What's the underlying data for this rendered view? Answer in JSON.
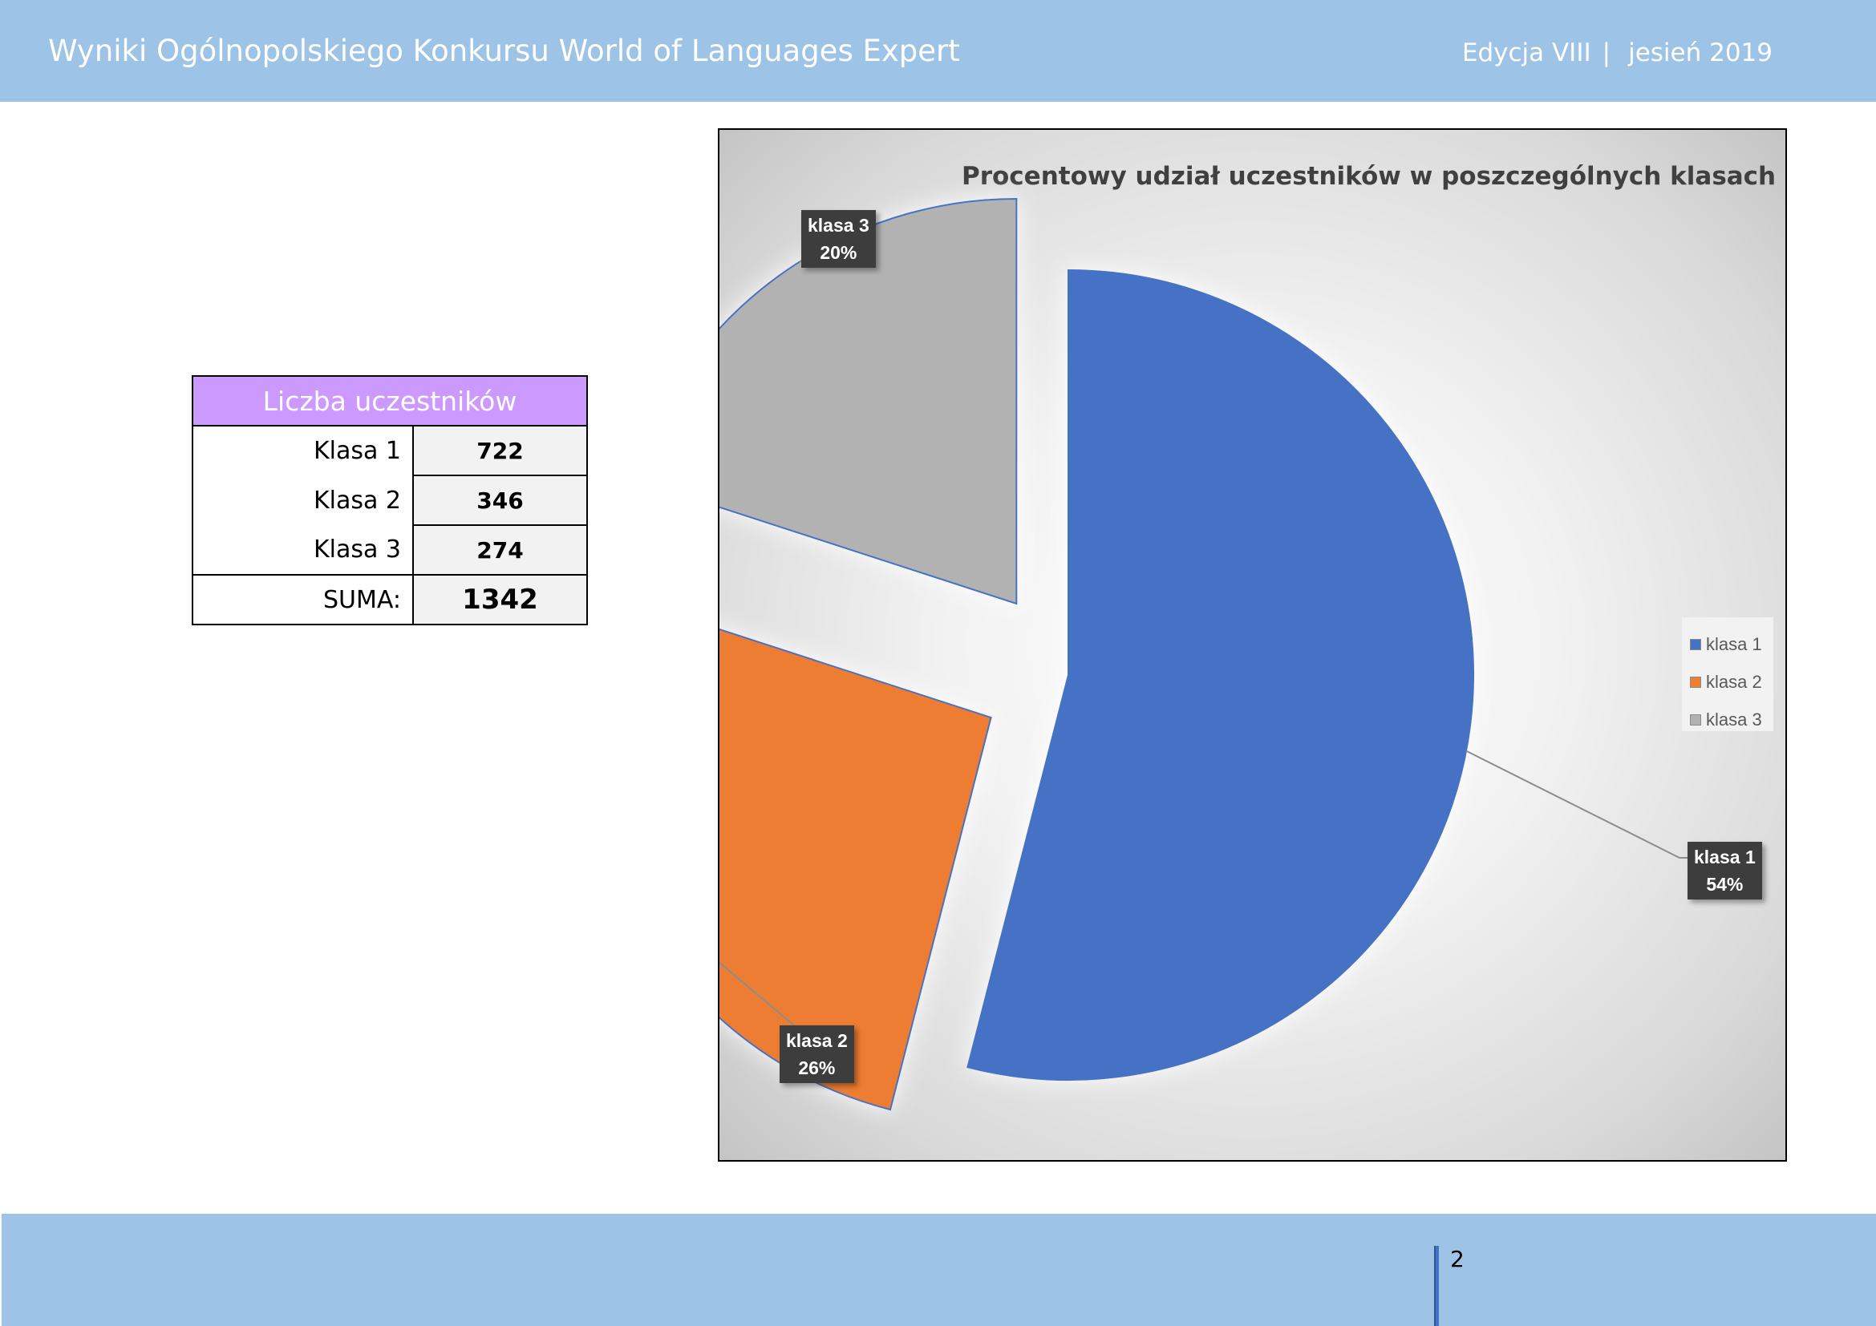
{
  "header": {
    "title": "Wyniki Ogólnopolskiego Konkursu World of Languages Expert",
    "edition": "Edycja VIII",
    "separator": "|",
    "season": "jesień 2019"
  },
  "table": {
    "header": "Liczba uczestników",
    "rows": [
      {
        "label": "Klasa 1",
        "value": "722"
      },
      {
        "label": "Klasa 2",
        "value": "346"
      },
      {
        "label": "Klasa 3",
        "value": "274"
      }
    ],
    "total_label": "SUMA:",
    "total_value": "1342"
  },
  "chart_data": {
    "type": "pie",
    "title": "Procentowy udział uczestników w poszczególnych klasach",
    "categories": [
      "klasa 1",
      "klasa 2",
      "klasa 3"
    ],
    "values": [
      54,
      26,
      20
    ],
    "counts": [
      722,
      346,
      274
    ],
    "labels": [
      {
        "name": "klasa 1",
        "pct": "54%"
      },
      {
        "name": "klasa 2",
        "pct": "26%"
      },
      {
        "name": "klasa 3",
        "pct": "20%"
      }
    ],
    "colors": [
      "#4472c4",
      "#ed7d31",
      "#b2b2b2"
    ],
    "legend": {
      "position": "right",
      "items": [
        "klasa 1",
        "klasa 2",
        "klasa 3"
      ]
    },
    "exploded": true
  },
  "footer": {
    "page_number": "2"
  }
}
